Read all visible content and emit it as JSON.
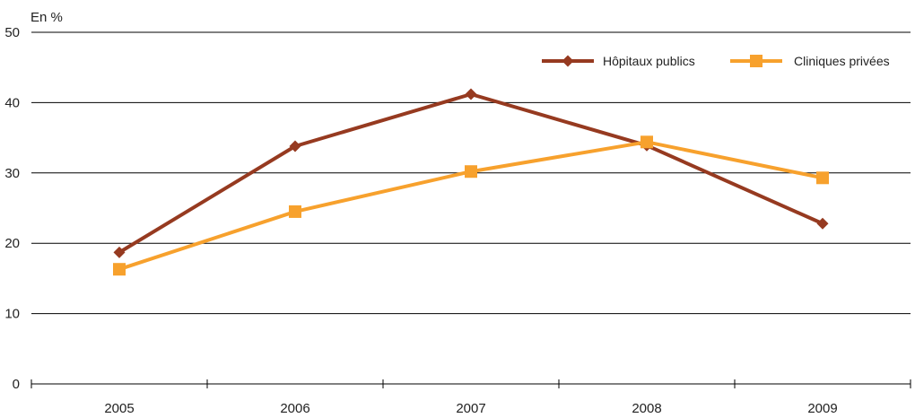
{
  "chart_data": {
    "type": "line",
    "title": "",
    "ylabel": "En %",
    "xlabel": "",
    "categories": [
      "2005",
      "2006",
      "2007",
      "2008",
      "2009"
    ],
    "ylim": [
      0,
      50
    ],
    "yticks": [
      0,
      10,
      20,
      30,
      40,
      50
    ],
    "grid": true,
    "legend_position": "top-right",
    "series": [
      {
        "name": "Hôpitaux publics",
        "values": [
          18.7,
          33.8,
          41.2,
          33.9,
          22.8
        ],
        "color": "#963a20",
        "marker": "diamond"
      },
      {
        "name": "Cliniques privées",
        "values": [
          16.3,
          24.5,
          30.2,
          34.4,
          29.3
        ],
        "color": "#f7a12d",
        "marker": "square"
      }
    ]
  }
}
